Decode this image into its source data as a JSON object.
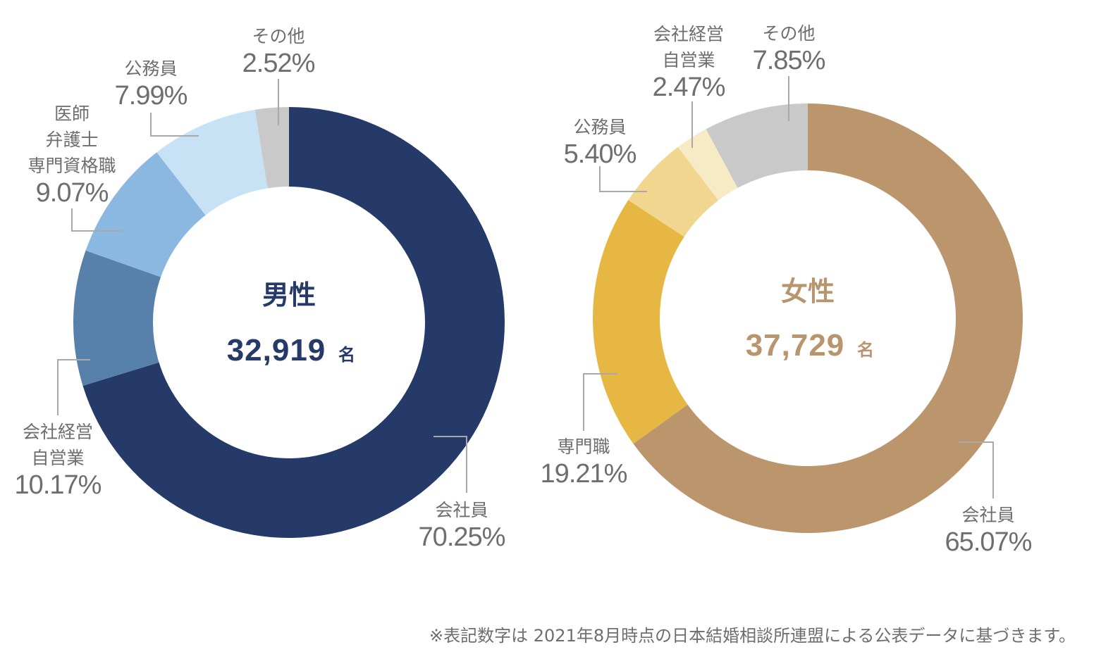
{
  "chart_data": [
    {
      "type": "donut",
      "center_title": "男性",
      "center_count": "32,919",
      "center_unit": "名",
      "title_color": "#253a68",
      "slices": [
        {
          "label": [
            "会社員"
          ],
          "value_text": "70.25%",
          "value": 70.25,
          "color": "#253a68"
        },
        {
          "label": [
            "会社経営",
            "自営業"
          ],
          "value_text": "10.17%",
          "value": 10.17,
          "color": "#5781ab"
        },
        {
          "label": [
            "医師",
            "弁護士",
            "専門資格職"
          ],
          "value_text": "9.07%",
          "value": 9.07,
          "color": "#8ab8e1"
        },
        {
          "label": [
            "公務員"
          ],
          "value_text": "7.99%",
          "value": 7.99,
          "color": "#c8e2f5"
        },
        {
          "label": [
            "その他"
          ],
          "value_text": "2.52%",
          "value": 2.52,
          "color": "#c9c9c9"
        }
      ]
    },
    {
      "type": "donut",
      "center_title": "女性",
      "center_count": "37,729",
      "center_unit": "名",
      "title_color": "#b9956d",
      "slices": [
        {
          "label": [
            "会社員"
          ],
          "value_text": "65.07%",
          "value": 65.07,
          "color": "#bb956c"
        },
        {
          "label": [
            "専門職"
          ],
          "value_text": "19.21%",
          "value": 19.21,
          "color": "#e7b744"
        },
        {
          "label": [
            "公務員"
          ],
          "value_text": "5.40%",
          "value": 5.4,
          "color": "#f0d68e"
        },
        {
          "label": [
            "会社経営",
            "自営業"
          ],
          "value_text": "2.47%",
          "value": 2.47,
          "color": "#f7ebc6"
        },
        {
          "label": [
            "その他"
          ],
          "value_text": "7.85%",
          "value": 7.85,
          "color": "#c9c9c9"
        }
      ]
    }
  ],
  "footnote": "※表記数字は 2021年8月時点の日本結婚相談所連盟による公表データに基づきます。"
}
